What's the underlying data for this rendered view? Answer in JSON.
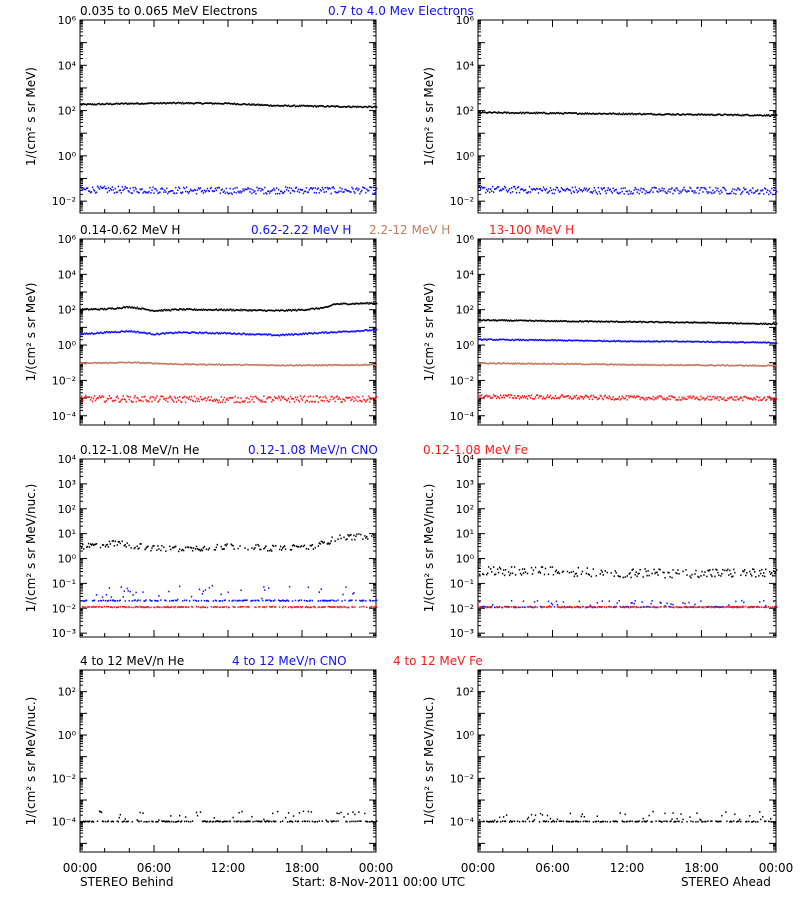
{
  "colors": {
    "black": "#000000",
    "blue": "#1010ff",
    "tan": "#c27c5e",
    "red": "#ff1a1a"
  },
  "footer": {
    "left": "STEREO Behind",
    "center": "Start:  8-Nov-2011 00:00 UTC",
    "right": "STEREO Ahead"
  },
  "chart_data": [
    {
      "type": "scatter",
      "panel": "row-1-behind",
      "legend": [
        {
          "text": "0.035 to 0.065 MeV Electrons",
          "color": "#000000"
        },
        {
          "text": "0.7 to 4.0 Mev Electrons",
          "color": "#1010ff"
        }
      ],
      "ylabel": "1/(cm² s sr MeV)",
      "yscale": "log",
      "ylim": [
        0.003,
        1000000
      ],
      "yticks": [
        [
          "10⁶",
          1000000
        ],
        [
          "10⁴",
          10000
        ],
        [
          "10²",
          100
        ],
        [
          "10⁰",
          1
        ],
        [
          "10⁻²",
          0.01
        ]
      ],
      "xlim": [
        0,
        24
      ],
      "series": [
        {
          "color": "#000000",
          "x": [
            0,
            4,
            8,
            12,
            16,
            20,
            24
          ],
          "y": [
            180,
            200,
            210,
            200,
            160,
            150,
            140
          ],
          "scatter": 0.03
        },
        {
          "color": "#1010ff",
          "x": [
            0,
            6,
            12,
            18,
            24
          ],
          "y": [
            0.032,
            0.03,
            0.028,
            0.03,
            0.029
          ],
          "scatter": 0.15
        }
      ]
    },
    {
      "type": "scatter",
      "panel": "row-1-ahead",
      "ylabel": "1/(cm² s sr MeV)",
      "yscale": "log",
      "ylim": [
        0.003,
        1000000
      ],
      "yticks": [
        [
          "10⁶",
          1000000
        ],
        [
          "10⁴",
          10000
        ],
        [
          "10²",
          100
        ],
        [
          "10⁰",
          1
        ],
        [
          "10⁻²",
          0.01
        ]
      ],
      "xlim": [
        0,
        24
      ],
      "series": [
        {
          "color": "#000000",
          "x": [
            0,
            6,
            12,
            18,
            24
          ],
          "y": [
            80,
            75,
            70,
            65,
            60
          ],
          "scatter": 0.03
        },
        {
          "color": "#1010ff",
          "x": [
            0,
            6,
            12,
            18,
            24
          ],
          "y": [
            0.032,
            0.03,
            0.028,
            0.029,
            0.027
          ],
          "scatter": 0.15
        }
      ]
    },
    {
      "type": "scatter",
      "panel": "row-2-behind",
      "legend": [
        {
          "text": "0.14-0.62 MeV H",
          "color": "#000000"
        },
        {
          "text": "0.62-2.22 MeV H",
          "color": "#1010ff"
        },
        {
          "text": "2.2-12 MeV H",
          "color": "#c27c5e"
        },
        {
          "text": "13-100 MeV H",
          "color": "#ff1a1a"
        }
      ],
      "ylabel": "1/(cm² s sr MeV)",
      "yscale": "log",
      "ylim": [
        3e-05,
        1000000
      ],
      "yticks": [
        [
          "10⁶",
          1000000
        ],
        [
          "10⁴",
          10000
        ],
        [
          "10²",
          100
        ],
        [
          "10⁰",
          1
        ],
        [
          "10⁻²",
          0.01
        ],
        [
          "10⁻⁴",
          0.0001
        ]
      ],
      "xlim": [
        0,
        24
      ],
      "series": [
        {
          "color": "#000000",
          "x": [
            0,
            2,
            4,
            6,
            8,
            12,
            16,
            18,
            20,
            20.5,
            24
          ],
          "y": [
            100,
            105,
            140,
            85,
            100,
            95,
            85,
            95,
            130,
            200,
            230
          ],
          "scatter": 0.04
        },
        {
          "color": "#1010ff",
          "x": [
            0,
            2,
            4,
            6,
            8,
            12,
            16,
            20,
            24
          ],
          "y": [
            4,
            5,
            6,
            4,
            5,
            4.5,
            3.5,
            5,
            7
          ],
          "scatter": 0.04
        },
        {
          "color": "#c27c5e",
          "x": [
            0,
            4,
            6,
            8,
            12,
            16,
            20,
            24
          ],
          "y": [
            0.09,
            0.1,
            0.09,
            0.08,
            0.075,
            0.07,
            0.07,
            0.075
          ],
          "scatter": 0.03
        },
        {
          "color": "#ff1a1a",
          "x": [
            0,
            6,
            12,
            18,
            24
          ],
          "y": [
            0.0009,
            0.00085,
            0.0008,
            0.00085,
            0.0008
          ],
          "scatter": 0.18
        }
      ]
    },
    {
      "type": "scatter",
      "panel": "row-2-ahead",
      "ylabel": "1/(cm² s sr MeV)",
      "yscale": "log",
      "ylim": [
        3e-05,
        1000000
      ],
      "yticks": [
        [
          "10⁶",
          1000000
        ],
        [
          "10⁴",
          10000
        ],
        [
          "10²",
          100
        ],
        [
          "10⁰",
          1
        ],
        [
          "10⁻²",
          0.01
        ],
        [
          "10⁻⁴",
          0.0001
        ]
      ],
      "xlim": [
        0,
        24
      ],
      "series": [
        {
          "color": "#000000",
          "x": [
            0,
            6,
            12,
            18,
            24
          ],
          "y": [
            25,
            22,
            20,
            18,
            15
          ],
          "scatter": 0.03
        },
        {
          "color": "#1010ff",
          "x": [
            0,
            6,
            12,
            18,
            24
          ],
          "y": [
            2,
            1.8,
            1.6,
            1.5,
            1.3
          ],
          "scatter": 0.03
        },
        {
          "color": "#c27c5e",
          "x": [
            0,
            6,
            12,
            18,
            24
          ],
          "y": [
            0.09,
            0.085,
            0.075,
            0.07,
            0.065
          ],
          "scatter": 0.03
        },
        {
          "color": "#ff1a1a",
          "x": [
            0,
            6,
            12,
            18,
            24
          ],
          "y": [
            0.0012,
            0.0011,
            0.001,
            0.00095,
            0.0009
          ],
          "scatter": 0.12
        }
      ]
    },
    {
      "type": "scatter",
      "panel": "row-3-behind",
      "legend": [
        {
          "text": "0.12-1.08 MeV/n He",
          "color": "#000000"
        },
        {
          "text": "0.12-1.08 MeV/n CNO",
          "color": "#1010ff"
        },
        {
          "text": "0.12-1.08 MeV Fe",
          "color": "#ff1a1a"
        }
      ],
      "ylabel": "1/(cm² s sr MeV/nuc.)",
      "yscale": "log",
      "ylim": [
        0.0007,
        10000
      ],
      "yticks": [
        [
          "10⁴",
          10000
        ],
        [
          "10³",
          1000
        ],
        [
          "10²",
          100
        ],
        [
          "10¹",
          10
        ],
        [
          "10⁰",
          1
        ],
        [
          "10⁻¹",
          0.1
        ],
        [
          "10⁻²",
          0.01
        ],
        [
          "10⁻³",
          0.001
        ]
      ],
      "xlim": [
        0,
        24
      ],
      "series": [
        {
          "color": "#000000",
          "x": [
            0,
            3,
            6,
            9,
            12,
            16,
            19,
            21,
            24
          ],
          "y": [
            3,
            4,
            2.5,
            2.5,
            3,
            2.5,
            3,
            7,
            8
          ],
          "scatter": 0.12,
          "sparse": true
        },
        {
          "color": "#1010ff",
          "x": [
            0,
            6,
            12,
            18,
            24
          ],
          "y": [
            0.02,
            0.02,
            0.02,
            0.02,
            0.02
          ],
          "scatter": 0.0,
          "sparse": true,
          "upper": 0.08
        },
        {
          "color": "#ff1a1a",
          "x": [
            0,
            24
          ],
          "y": [
            0.011,
            0.011
          ],
          "scatter": 0.0,
          "sparse": true
        }
      ]
    },
    {
      "type": "scatter",
      "panel": "row-3-ahead",
      "ylabel": "1/(cm² s sr MeV/nuc.)",
      "yscale": "log",
      "ylim": [
        0.0007,
        10000
      ],
      "yticks": [
        [
          "10⁴",
          10000
        ],
        [
          "10³",
          1000
        ],
        [
          "10²",
          100
        ],
        [
          "10¹",
          10
        ],
        [
          "10⁰",
          1
        ],
        [
          "10⁻¹",
          0.1
        ],
        [
          "10⁻²",
          0.01
        ],
        [
          "10⁻³",
          0.001
        ]
      ],
      "xlim": [
        0,
        24
      ],
      "series": [
        {
          "color": "#000000",
          "x": [
            0,
            6,
            12,
            18,
            24
          ],
          "y": [
            0.3,
            0.3,
            0.25,
            0.25,
            0.25
          ],
          "scatter": 0.18,
          "sparse": true
        },
        {
          "color": "#1010ff",
          "x": [
            0,
            24
          ],
          "y": [
            0.011,
            0.011
          ],
          "scatter": 0.0,
          "sparse": true,
          "upper": 0.02
        },
        {
          "color": "#ff1a1a",
          "x": [
            0,
            24
          ],
          "y": [
            0.011,
            0.011
          ],
          "scatter": 0.0,
          "sparse": true
        }
      ]
    },
    {
      "type": "scatter",
      "panel": "row-4-behind",
      "legend": [
        {
          "text": "4 to 12 MeV/n He",
          "color": "#000000"
        },
        {
          "text": "4 to 12 MeV/n CNO",
          "color": "#1010ff"
        },
        {
          "text": "4 to 12 MeV Fe",
          "color": "#ff1a1a"
        }
      ],
      "ylabel": "1/(cm² s sr MeV/nuc.)",
      "yscale": "log",
      "ylim": [
        4e-06,
        1000
      ],
      "yticks": [
        [
          "10²",
          100
        ],
        [
          "10⁰",
          1
        ],
        [
          "10⁻²",
          0.01
        ],
        [
          "10⁻⁴",
          0.0001
        ]
      ],
      "xlim": [
        0,
        24
      ],
      "xticks": [
        "00:00",
        "06:00",
        "12:00",
        "18:00",
        "00:00"
      ],
      "series": [
        {
          "color": "#000000",
          "x": [
            0,
            24
          ],
          "y": [
            0.0001,
            0.0001
          ],
          "scatter": 0.0,
          "sparse": true,
          "upper": 0.0003
        }
      ]
    },
    {
      "type": "scatter",
      "panel": "row-4-ahead",
      "ylabel": "1/(cm² s sr MeV/nuc.)",
      "yscale": "log",
      "ylim": [
        4e-06,
        1000
      ],
      "yticks": [
        [
          "10²",
          100
        ],
        [
          "10⁰",
          1
        ],
        [
          "10⁻²",
          0.01
        ],
        [
          "10⁻⁴",
          0.0001
        ]
      ],
      "xlim": [
        0,
        24
      ],
      "xticks": [
        "00:00",
        "06:00",
        "12:00",
        "18:00",
        "00:00"
      ],
      "series": [
        {
          "color": "#000000",
          "x": [
            0,
            24
          ],
          "y": [
            0.0001,
            0.0001
          ],
          "scatter": 0.0,
          "sparse": true,
          "upper": 0.0003
        }
      ]
    }
  ]
}
